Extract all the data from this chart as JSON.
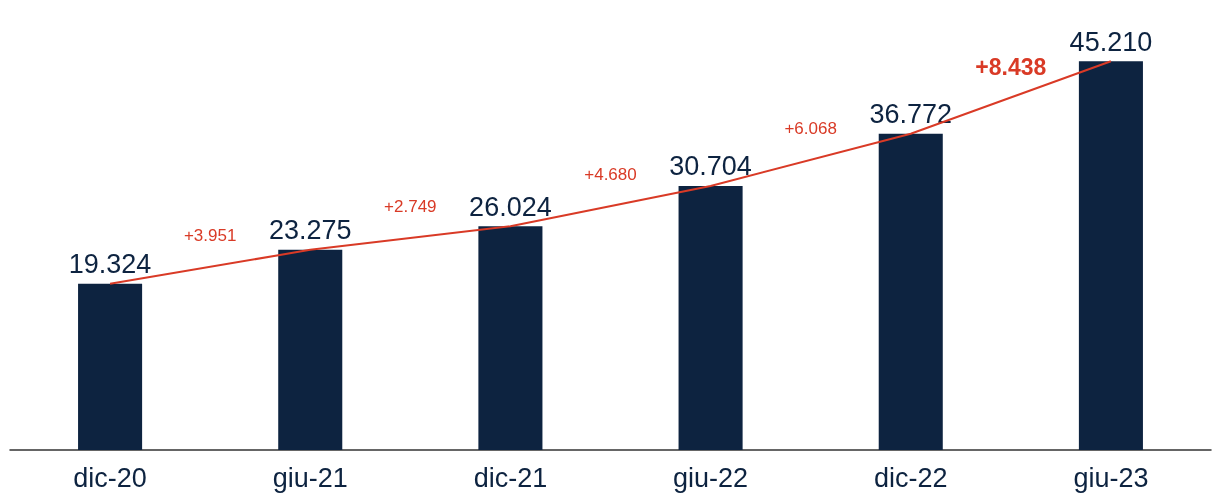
{
  "chart_data": {
    "type": "bar",
    "categories": [
      "dic-20",
      "giu-21",
      "dic-21",
      "giu-22",
      "dic-22",
      "giu-23"
    ],
    "series": [
      {
        "color": "#0d2340",
        "values": [
          19324,
          23275,
          26024,
          30704,
          36772,
          45210
        ],
        "value_labels": [
          "19.324",
          "23.275",
          "26.024",
          "30.704",
          "36.772",
          "45.210"
        ]
      },
      {
        "type": "line",
        "color": "#d93a26",
        "values": [
          19324,
          23275,
          26024,
          30704,
          36772,
          45210
        ],
        "marker": "none"
      }
    ],
    "annotations": [
      "+3.951",
      "+2.749",
      "+4.680",
      "+6.068",
      "+8.438"
    ],
    "grid": false
  }
}
